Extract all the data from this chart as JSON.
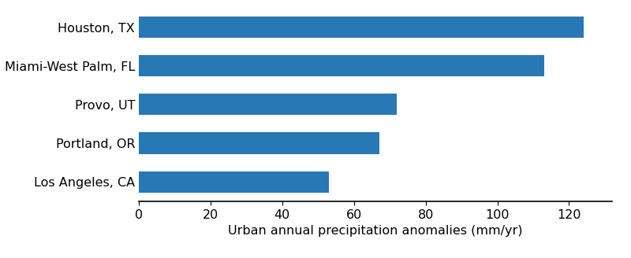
{
  "categories": [
    "Los Angeles, CA",
    "Portland, OR",
    "Provo, UT",
    "Miami-West Palm, FL",
    "Houston, TX"
  ],
  "values": [
    53,
    67,
    72,
    113,
    124
  ],
  "bar_color": "#2878b5",
  "xlabel": "Urban annual precipitation anomalies (mm/yr)",
  "xlim": [
    0,
    132
  ],
  "xticks": [
    0,
    20,
    40,
    60,
    80,
    100,
    120
  ],
  "background_color": "#ffffff",
  "bar_height": 0.55,
  "label_fontsize": 11.5,
  "xlabel_fontsize": 11.5
}
